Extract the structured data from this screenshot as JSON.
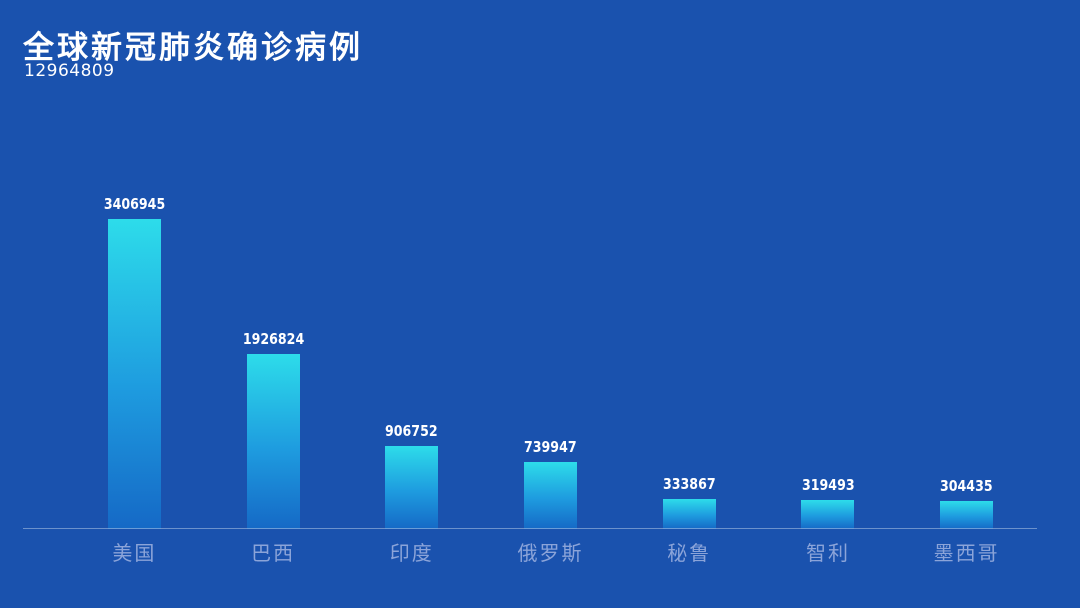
{
  "header": {
    "title": "全球新冠肺炎确诊病例",
    "total": "12964809"
  },
  "colors": {
    "background": "#1A52AE",
    "bar_top": "#2DDCEA",
    "bar_mid": "#1E9BDF",
    "bar_bottom": "#1569C6",
    "value_label": "#FFFFFF",
    "category_label": "#8BA4D9",
    "axis_line": "rgba(176,199,230,0.55)"
  },
  "chart_data": {
    "type": "bar",
    "title": "全球新冠肺炎确诊病例",
    "subtitle_total": 12964809,
    "categories": [
      "美国",
      "巴西",
      "印度",
      "俄罗斯",
      "秘鲁",
      "智利",
      "墨西哥"
    ],
    "values": [
      3406945,
      1926824,
      906752,
      739947,
      333867,
      319493,
      304435
    ],
    "xlabel": "",
    "ylabel": "",
    "ylim": [
      0,
      3406945
    ],
    "grid": false,
    "legend": "none",
    "value_labels_shown": true,
    "baseline_axis": "x"
  }
}
